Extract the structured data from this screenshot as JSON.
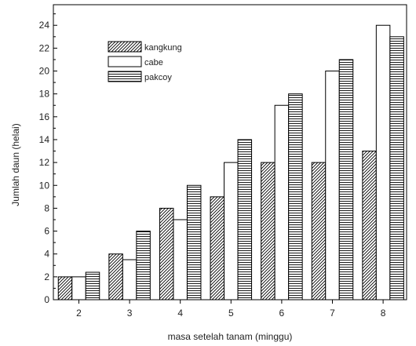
{
  "chart_data": {
    "type": "bar",
    "title": "",
    "xlabel": "masa setelah tanam (minggu)",
    "ylabel": "Jumlah daun (helai)",
    "categories": [
      "2",
      "3",
      "4",
      "5",
      "6",
      "7",
      "8"
    ],
    "series": [
      {
        "name": "kangkung",
        "values": [
          2,
          4,
          8,
          9,
          12,
          12,
          13
        ],
        "pattern": "diagonal-hatch"
      },
      {
        "name": "cabe",
        "values": [
          2,
          3.5,
          7,
          12,
          17,
          20,
          24
        ],
        "pattern": "white"
      },
      {
        "name": "pakcoy",
        "values": [
          2.4,
          6,
          10,
          14,
          18,
          21,
          23
        ],
        "pattern": "horizontal-lines"
      }
    ],
    "ylim": [
      0,
      25.8
    ],
    "yticks": [
      0,
      2,
      4,
      6,
      8,
      10,
      12,
      14,
      16,
      18,
      20,
      22,
      24
    ],
    "grid": false,
    "legend_position": "upper-left",
    "colors": {
      "axis": "#000000",
      "bar_stroke": "#000000",
      "bar_fill": "#ffffff"
    }
  }
}
